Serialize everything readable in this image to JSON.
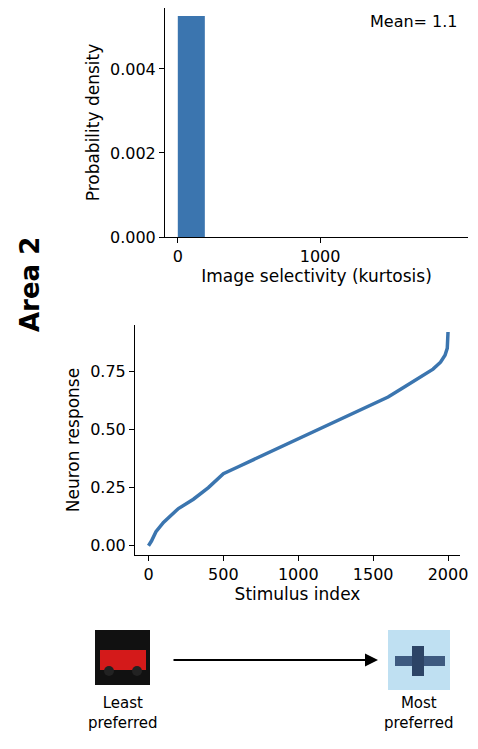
{
  "panel_label": "Area 2",
  "stimulus_labels": {
    "start": "Least preferred",
    "end": "Most preferred"
  },
  "chart_data": [
    {
      "type": "histogram",
      "x_label": "Image selectivity (kurtosis)",
      "y_label": "Probability density",
      "annotation": "Mean= 1.1",
      "bins": [
        0,
        190,
        380,
        570,
        760,
        950,
        1140,
        1330,
        1520,
        1710,
        1900
      ],
      "values": [
        0.00526,
        0,
        0,
        0,
        0,
        0,
        0,
        0,
        0,
        0
      ],
      "color": "#3b75af",
      "xlim": [
        -90,
        2040
      ],
      "xticks": [
        0,
        1000
      ],
      "ylim": [
        0,
        0.00545
      ],
      "yticks": [
        {
          "value": 0,
          "label": "0.000"
        },
        {
          "value": 0.002,
          "label": "0.002"
        },
        {
          "value": 0.004,
          "label": "0.004"
        }
      ],
      "grid": false
    },
    {
      "type": "line",
      "x_label": "Stimulus index",
      "y_label": "Neuron response",
      "x": [
        0,
        20,
        50,
        100,
        200,
        300,
        400,
        500,
        600,
        700,
        800,
        900,
        1000,
        1100,
        1200,
        1300,
        1400,
        1500,
        1600,
        1700,
        1800,
        1900,
        1950,
        1980,
        1995,
        2000
      ],
      "values": [
        0.0,
        0.02,
        0.06,
        0.1,
        0.16,
        0.2,
        0.25,
        0.31,
        0.34,
        0.37,
        0.4,
        0.43,
        0.46,
        0.49,
        0.52,
        0.55,
        0.58,
        0.61,
        0.64,
        0.68,
        0.72,
        0.76,
        0.79,
        0.82,
        0.85,
        0.92
      ],
      "color": "#3b75af",
      "xlim": [
        -90,
        2080
      ],
      "xticks": [
        0,
        500,
        1000,
        1500,
        2000
      ],
      "ylim": [
        -0.04,
        0.95
      ],
      "yticks": [
        {
          "value": 0,
          "label": "0.00"
        },
        {
          "value": 0.25,
          "label": "0.25"
        },
        {
          "value": 0.5,
          "label": "0.50"
        },
        {
          "value": 0.75,
          "label": "0.75"
        }
      ],
      "grid": false
    }
  ]
}
